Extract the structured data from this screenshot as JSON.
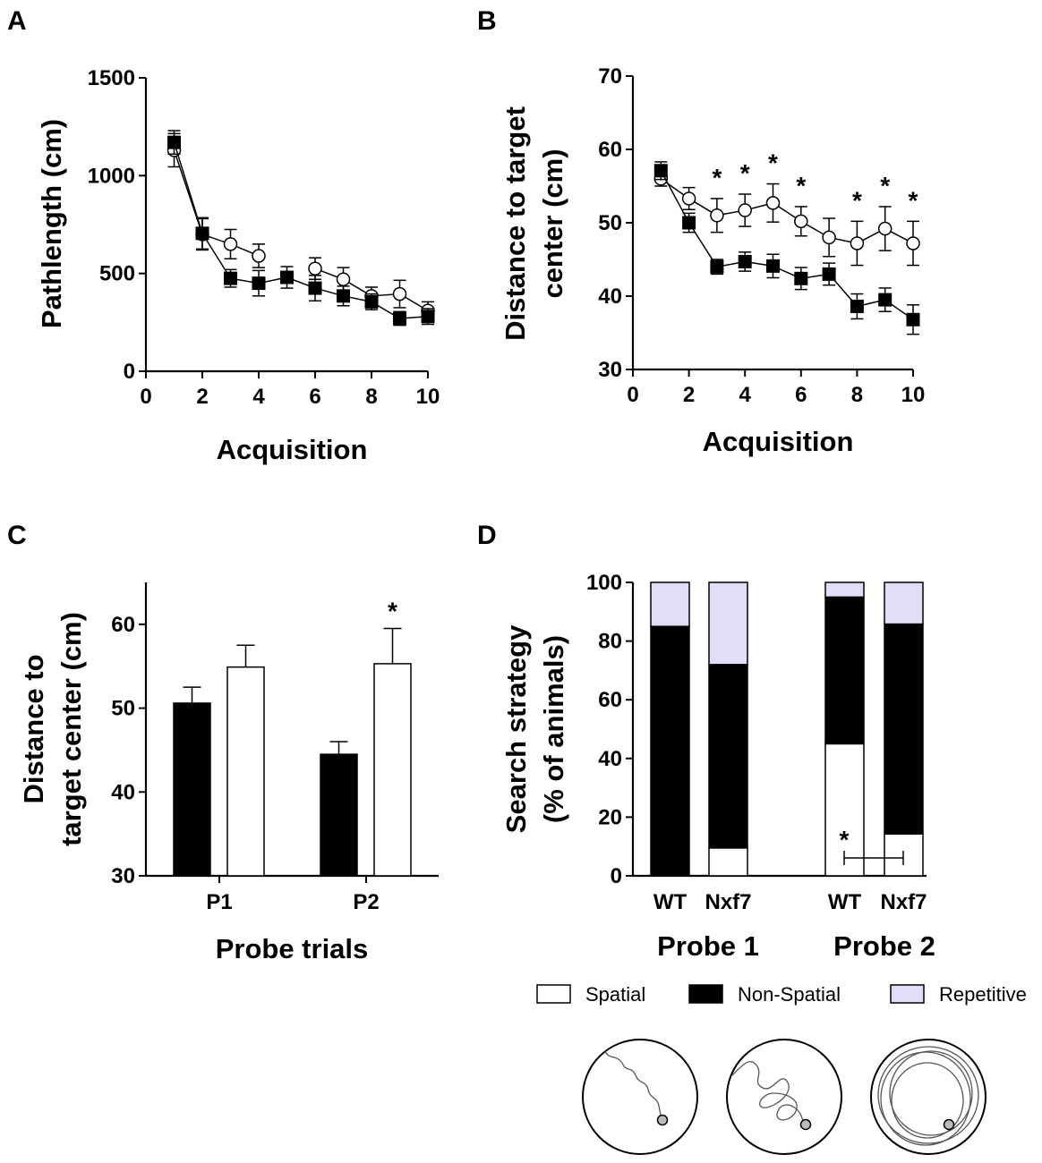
{
  "panels": {
    "a": "A",
    "b": "B",
    "c": "C",
    "d": "D"
  },
  "colors": {
    "black": "#000000",
    "white": "#ffffff",
    "repetitive": "#e0dff7"
  },
  "chart_data": [
    {
      "id": "A",
      "type": "line",
      "xlabel": "Acquisition",
      "ylabel": "Pathlength (cm)",
      "xlim": [
        0,
        10
      ],
      "ylim": [
        0,
        1500
      ],
      "xticks": [
        0,
        2,
        4,
        6,
        8,
        10
      ],
      "yticks": [
        0,
        500,
        1000,
        1500
      ],
      "series": [
        {
          "name": "open circles",
          "marker": "circle",
          "x": [
            1,
            2,
            3,
            4,
            6,
            7,
            8,
            9,
            10
          ],
          "values": [
            1130,
            700,
            650,
            590,
            525,
            470,
            385,
            395,
            310
          ],
          "errors": [
            85,
            80,
            75,
            60,
            55,
            60,
            45,
            70,
            45
          ]
        },
        {
          "name": "filled squares",
          "marker": "square",
          "x": [
            1,
            2,
            3,
            4,
            5,
            6,
            7,
            8,
            9,
            10
          ],
          "values": [
            1170,
            705,
            475,
            450,
            480,
            425,
            385,
            355,
            270,
            280
          ],
          "errors": [
            60,
            80,
            45,
            65,
            55,
            65,
            50,
            40,
            35,
            40
          ]
        }
      ]
    },
    {
      "id": "B",
      "type": "line",
      "xlabel": "Acquisition",
      "ylabel_lines": [
        "Distance to target",
        "center (cm)"
      ],
      "xlim": [
        0,
        10
      ],
      "ylim": [
        30,
        70
      ],
      "xticks": [
        0,
        2,
        4,
        6,
        8,
        10
      ],
      "yticks": [
        30,
        40,
        50,
        60,
        70
      ],
      "significance": [
        {
          "x": 3,
          "label": "*"
        },
        {
          "x": 4,
          "label": "*"
        },
        {
          "x": 5,
          "label": "*"
        },
        {
          "x": 6,
          "label": "*"
        },
        {
          "x": 8,
          "label": "*"
        },
        {
          "x": 9,
          "label": "*"
        },
        {
          "x": 10,
          "label": "*"
        }
      ],
      "series": [
        {
          "name": "open circles",
          "marker": "circle",
          "x": [
            1,
            2,
            3,
            4,
            5,
            6,
            7,
            8,
            9,
            10
          ],
          "values": [
            56,
            53.3,
            51,
            51.7,
            52.7,
            50.2,
            48,
            47.2,
            49.2,
            47.2
          ],
          "errors": [
            1,
            1.5,
            2.3,
            2.2,
            2.6,
            2,
            2.6,
            3,
            3,
            3
          ]
        },
        {
          "name": "filled squares",
          "marker": "square",
          "x": [
            1,
            2,
            3,
            4,
            5,
            6,
            7,
            8,
            9,
            10
          ],
          "values": [
            57.1,
            50,
            44,
            44.7,
            44.1,
            42.4,
            43,
            38.6,
            39.5,
            36.8
          ],
          "errors": [
            1.2,
            1.3,
            1,
            1.3,
            1.6,
            1.5,
            1.5,
            1.7,
            1.6,
            2
          ]
        }
      ]
    },
    {
      "id": "C",
      "type": "bar",
      "xlabel": "Probe trials",
      "ylabel_lines": [
        "Distance to",
        "target center (cm)"
      ],
      "categories": [
        "P1",
        "P2"
      ],
      "ylim": [
        30,
        65
      ],
      "yticks": [
        30,
        40,
        50,
        60
      ],
      "series": [
        {
          "name": "filled",
          "color": "#000000",
          "values": [
            50.6,
            44.5
          ],
          "errors": [
            1.9,
            1.5
          ]
        },
        {
          "name": "open",
          "color": "#ffffff",
          "values": [
            54.9,
            55.3
          ],
          "errors": [
            2.6,
            4.2
          ]
        }
      ],
      "significance": [
        {
          "category": "P2",
          "label": "*"
        }
      ]
    },
    {
      "id": "D",
      "type": "bar",
      "stacked": true,
      "ylabel_lines": [
        "Search strategy",
        "(% of animals)"
      ],
      "ylim": [
        0,
        100
      ],
      "yticks": [
        0,
        20,
        40,
        60,
        80,
        100
      ],
      "groups": [
        "Probe 1",
        "Probe 2"
      ],
      "categories": [
        "WT",
        "Nxf7",
        "WT",
        "Nxf7"
      ],
      "series": [
        {
          "name": "Spatial",
          "color": "#ffffff",
          "values": [
            0,
            9.5,
            45,
            14.3
          ]
        },
        {
          "name": "Non-Spatial",
          "color": "#000000",
          "values": [
            85,
            62.5,
            50,
            71.5
          ]
        },
        {
          "name": "Repetitive",
          "color": "#e0dff7",
          "values": [
            15,
            28,
            5,
            14.2
          ]
        }
      ],
      "significance": [
        {
          "between": [
            "WT",
            "Nxf7"
          ],
          "group": "Probe 2",
          "label": "*"
        }
      ],
      "legend": [
        "Spatial",
        "Non-Spatial",
        "Repetitive"
      ]
    }
  ],
  "illustrations": [
    {
      "name": "Spatial"
    },
    {
      "name": "Non-Spatial"
    },
    {
      "name": "Repetitive"
    }
  ]
}
